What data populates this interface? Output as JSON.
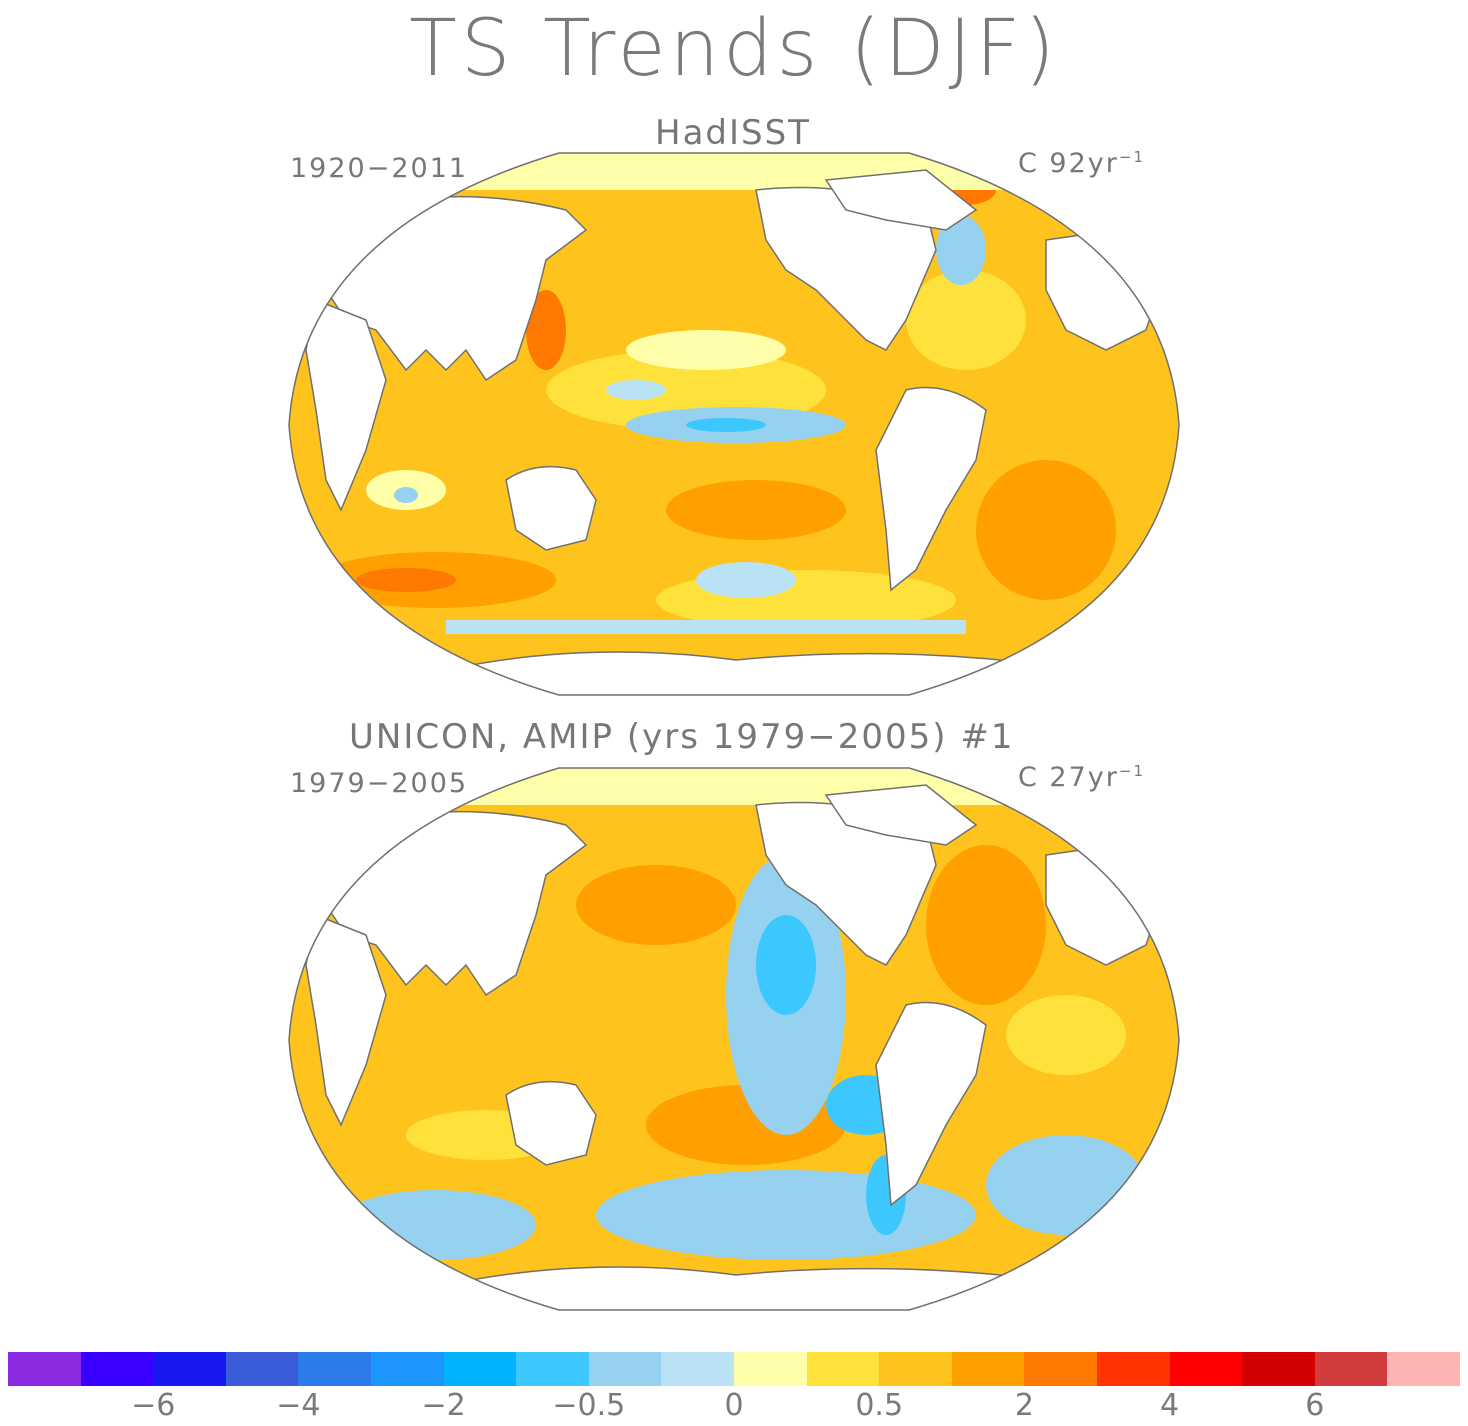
{
  "title": "TS Trends (DJF)",
  "panels": [
    {
      "title": "HadISST",
      "left_label": "1920−2011",
      "units": "C 92yr",
      "units_exp": "−1"
    },
    {
      "title": "UNICON, AMIP (yrs 1979−2005)      #1",
      "left_label": "1979−2005",
      "units": "C 27yr",
      "units_exp": "−1"
    }
  ],
  "colorbar": {
    "colors": [
      "#8a2be2",
      "#3a00ff",
      "#1818f0",
      "#3a5cd8",
      "#2b7ce8",
      "#1e96ff",
      "#00b2ff",
      "#3cc8ff",
      "#96d2f0",
      "#b9e3f5",
      "#ffffaa",
      "#ffe13c",
      "#ffc31e",
      "#ffa000",
      "#ff7800",
      "#ff3200",
      "#ff0000",
      "#d20000",
      "#d23c3c",
      "#ffb4b4"
    ],
    "tick_labels": [
      "−6",
      "−4",
      "−2",
      "−0.5",
      "0",
      "0.5",
      "2",
      "4",
      "6"
    ]
  },
  "map_colors": {
    "land": "#ffffff",
    "coast": "#707070",
    "frame": "#707070",
    "ocean_base": "#ffc31e",
    "arctic": "#ffffaa"
  }
}
